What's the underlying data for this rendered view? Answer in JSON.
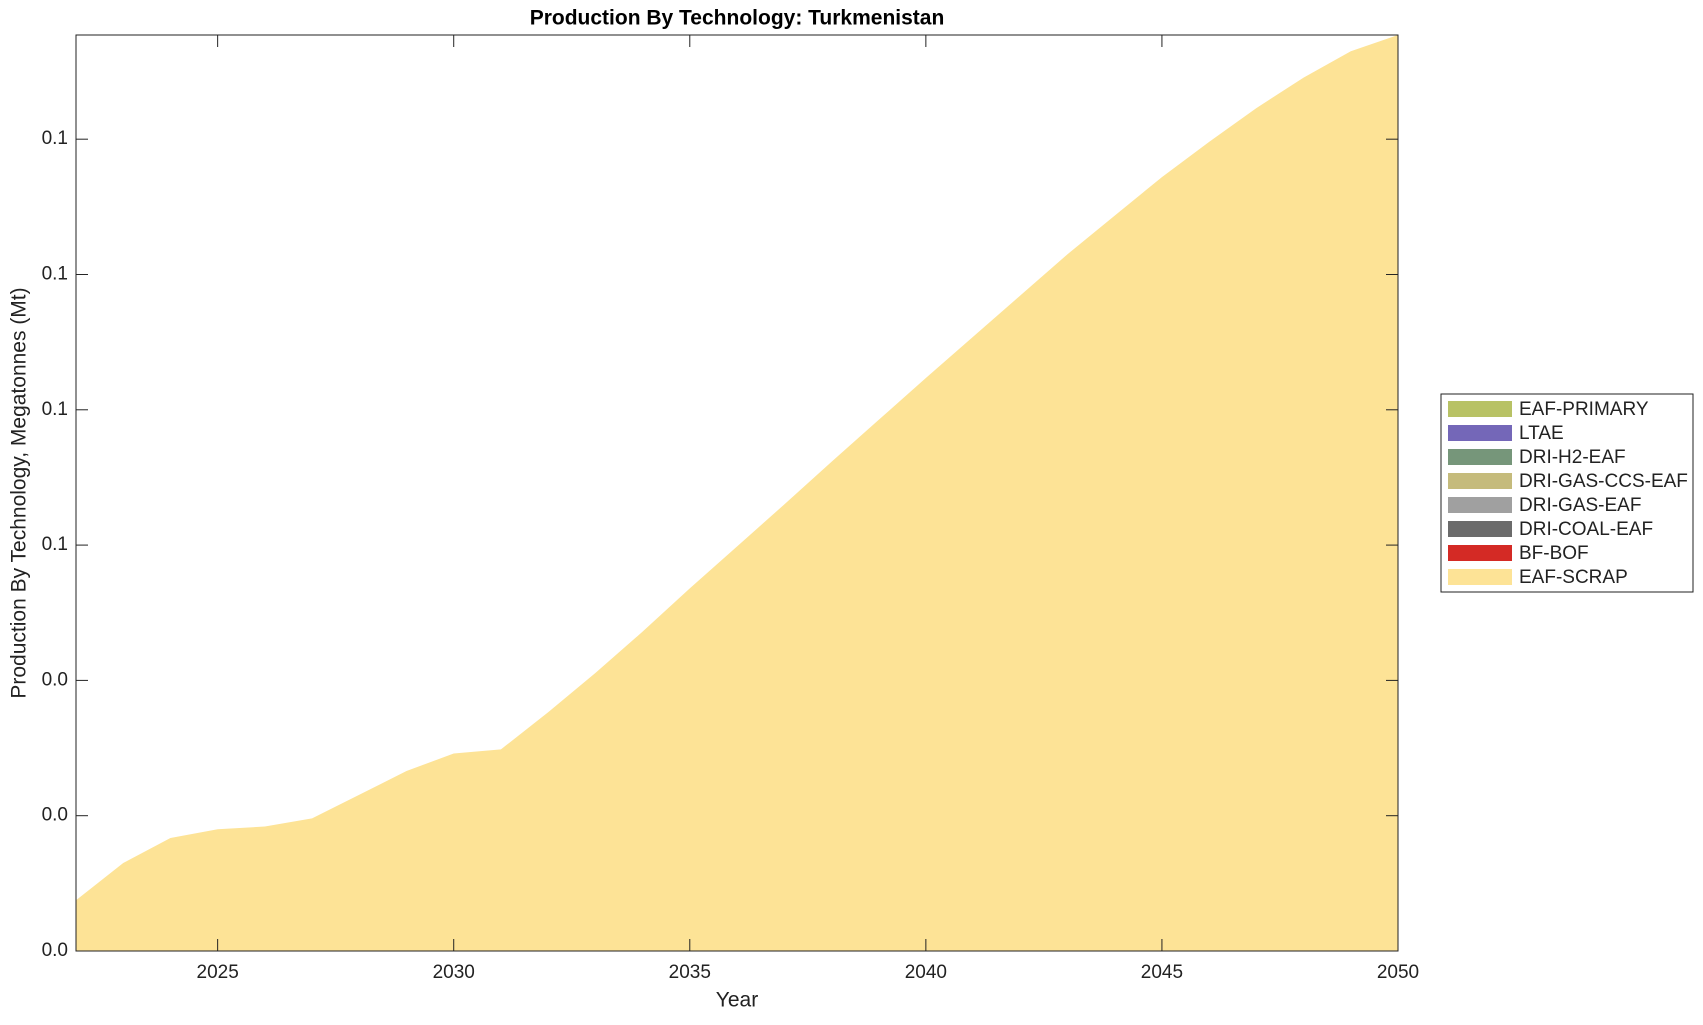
{
  "chart_data": {
    "type": "stacked-area",
    "title": "Production By Technology: Turkmenistan",
    "x_label": "Year",
    "y_label": "Production By Technology, Megatonnes (Mt)",
    "x": [
      2022,
      2023,
      2024,
      2025,
      2026,
      2027,
      2028,
      2029,
      2030,
      2031,
      2032,
      2033,
      2034,
      2035,
      2036,
      2037,
      2038,
      2039,
      2040,
      2041,
      2042,
      2043,
      2044,
      2045,
      2046,
      2047,
      2048,
      2049,
      2050
    ],
    "xlim": [
      2022,
      2050
    ],
    "xticks": [
      2025,
      2030,
      2035,
      2040,
      2045,
      2050
    ],
    "ylim": [
      0,
      0.1354
    ],
    "yticks": [
      {
        "value": 0,
        "label": "0.0"
      },
      {
        "value": 0.02,
        "label": "0.0"
      },
      {
        "value": 0.04,
        "label": "0.0"
      },
      {
        "value": 0.06,
        "label": "0.1"
      },
      {
        "value": 0.08,
        "label": "0.1"
      },
      {
        "value": 0.1,
        "label": "0.1"
      },
      {
        "value": 0.12,
        "label": "0.1"
      }
    ],
    "legend": "right",
    "series": [
      {
        "name": "EAF-PRIMARY",
        "color": "#b8c265",
        "values": [
          0,
          0,
          0,
          0,
          0,
          0,
          0,
          0,
          0,
          0,
          0,
          0,
          0,
          0,
          0,
          0,
          0,
          0,
          0,
          0,
          0,
          0,
          0,
          0,
          0,
          0,
          0,
          0,
          0
        ]
      },
      {
        "name": "LTAE",
        "color": "#7467b8",
        "values": [
          0,
          0,
          0,
          0,
          0,
          0,
          0,
          0,
          0,
          0,
          0,
          0,
          0,
          0,
          0,
          0,
          0,
          0,
          0,
          0,
          0,
          0,
          0,
          0,
          0,
          0,
          0,
          0,
          0
        ]
      },
      {
        "name": "DRI-H2-EAF",
        "color": "#76967a",
        "values": [
          0,
          0,
          0,
          0,
          0,
          0,
          0,
          0,
          0,
          0,
          0,
          0,
          0,
          0,
          0,
          0,
          0,
          0,
          0,
          0,
          0,
          0,
          0,
          0,
          0,
          0,
          0,
          0,
          0
        ]
      },
      {
        "name": "DRI-GAS-CCS-EAF",
        "color": "#c5bb7c",
        "values": [
          0,
          0,
          0,
          0,
          0,
          0,
          0,
          0,
          0,
          0,
          0,
          0,
          0,
          0,
          0,
          0,
          0,
          0,
          0,
          0,
          0,
          0,
          0,
          0,
          0,
          0,
          0,
          0,
          0
        ]
      },
      {
        "name": "DRI-GAS-EAF",
        "color": "#a0a0a0",
        "values": [
          0,
          0,
          0,
          0,
          0,
          0,
          0,
          0,
          0,
          0,
          0,
          0,
          0,
          0,
          0,
          0,
          0,
          0,
          0,
          0,
          0,
          0,
          0,
          0,
          0,
          0,
          0,
          0,
          0
        ]
      },
      {
        "name": "DRI-COAL-EAF",
        "color": "#6b6b6b",
        "values": [
          0,
          0,
          0,
          0,
          0,
          0,
          0,
          0,
          0,
          0,
          0,
          0,
          0,
          0,
          0,
          0,
          0,
          0,
          0,
          0,
          0,
          0,
          0,
          0,
          0,
          0,
          0,
          0,
          0
        ]
      },
      {
        "name": "BF-BOF",
        "color": "#d42a25",
        "values": [
          0,
          0,
          0,
          0,
          0,
          0,
          0,
          0,
          0,
          0,
          0,
          0,
          0,
          0,
          0,
          0,
          0,
          0,
          0,
          0,
          0,
          0,
          0,
          0,
          0,
          0,
          0,
          0,
          0
        ]
      },
      {
        "name": "EAF-SCRAP",
        "color": "#fde396",
        "values": [
          0.0075,
          0.013,
          0.0167,
          0.018,
          0.0184,
          0.0196,
          0.0231,
          0.0266,
          0.0292,
          0.0298,
          0.0353,
          0.0411,
          0.0472,
          0.0536,
          0.0598,
          0.066,
          0.0723,
          0.0785,
          0.0847,
          0.0908,
          0.0969,
          0.103,
          0.1087,
          0.1144,
          0.1196,
          0.1246,
          0.1291,
          0.133,
          0.1354
        ]
      }
    ]
  }
}
